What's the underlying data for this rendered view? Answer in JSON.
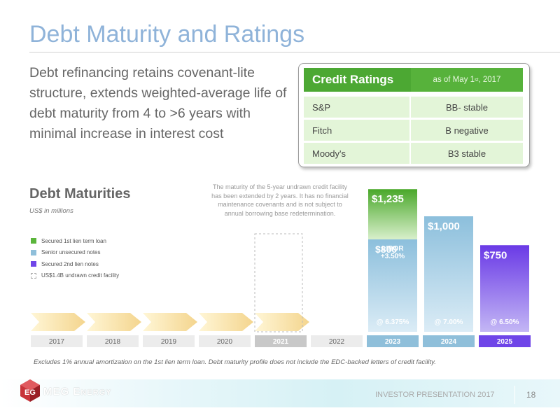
{
  "slide": {
    "title": "Debt Maturity and Ratings",
    "subtitle": "Debt refinancing retains covenant-lite structure, extends weighted-average life of debt maturity from 4 to >6 years with minimal increase in interest cost"
  },
  "ratings": {
    "header": "Credit Ratings",
    "date_prefix": "as of May 1",
    "date_suffix": "st",
    "date_year": ", 2017",
    "rows": [
      {
        "agency": "S&P",
        "rating": "BB- stable"
      },
      {
        "agency": "Fitch",
        "rating": "B negative"
      },
      {
        "agency": "Moody's",
        "rating": "B3 stable"
      }
    ]
  },
  "chart_data": {
    "type": "bar",
    "title": "Debt Maturities",
    "unit": "US$ in millions",
    "categories": [
      "2017",
      "2018",
      "2019",
      "2020",
      "2021",
      "2022",
      "2023",
      "2024",
      "2025"
    ],
    "series": [
      {
        "name": "Secured 1st lien term loan",
        "color": "#5bb53b",
        "values": [
          0,
          0,
          0,
          0,
          0,
          0,
          435,
          0,
          0
        ]
      },
      {
        "name": "Senior unsecured notes",
        "color": "#8fbfda",
        "values": [
          0,
          0,
          0,
          0,
          0,
          0,
          800,
          1000,
          0
        ]
      },
      {
        "name": "Secured 2nd lien notes",
        "color": "#7046e8",
        "values": [
          0,
          0,
          0,
          0,
          0,
          0,
          0,
          0,
          750
        ]
      },
      {
        "name": "US$1.4B undrawn credit facility",
        "color": "#bbbbbb",
        "values": [
          0,
          0,
          0,
          0,
          1400,
          0,
          0,
          0,
          0
        ]
      }
    ],
    "bar_labels": [
      {
        "category": "2023",
        "total": "$1,235",
        "top_note": "LIBOR\n+3.50%",
        "lower": "$800",
        "rate": "@ 6.375%"
      },
      {
        "category": "2024",
        "total": "$1,000",
        "rate": "@ 7.00%"
      },
      {
        "category": "2025",
        "total": "$750",
        "rate": "@ 6.50%"
      }
    ],
    "annotation": "The maturity of the 5-year undrawn credit facility has been extended by 2 years. It has no financial maintenance covenants and is not subject to annual borrowing base redetermination.",
    "ylim": [
      0,
      1400
    ]
  },
  "footnote": "Excludes 1% annual amortization on the 1st lien term loan. Debt maturity profile does not include the EDC-backed letters of credit facility.",
  "footer": {
    "brand": "MEG Energy",
    "label": "INVESTOR PRESENTATION 2017",
    "page": "18"
  }
}
